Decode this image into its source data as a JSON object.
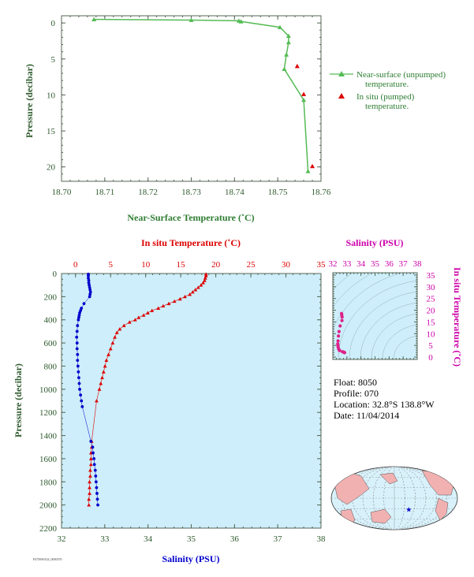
{
  "info": {
    "float": "Float: 8050",
    "profile": "Profile: 070",
    "location": "Location: 32.8°S 138.8°W",
    "date": "Date: 11/04/2014"
  },
  "stamp": "P4750S0124_0050370",
  "colors": {
    "green": "#55bb55",
    "red": "#dd0000",
    "blue": "#0000cc",
    "magenta": "#cc00aa",
    "axis_text_green": "#2e5a2e",
    "plot_bg": "#cdeefa",
    "land": "#f2b1b1"
  },
  "chart_data": [
    {
      "id": "near_surface",
      "type": "line",
      "xlabel": "Near-Surface Temperature (˚C)",
      "ylabel": "Pressure (decibar)",
      "xlim": [
        18.7,
        18.76
      ],
      "ylim": [
        22,
        -1
      ],
      "xticks": [
        18.7,
        18.71,
        18.72,
        18.73,
        18.74,
        18.75,
        18.76
      ],
      "xtick_labels": [
        "18.70",
        "18.71",
        "18.72",
        "18.73",
        "18.74",
        "18.75",
        "18.76"
      ],
      "yticks": [
        0,
        5,
        10,
        15,
        20
      ],
      "ytick_labels": [
        "0",
        "5",
        "10",
        "15",
        "20"
      ],
      "series": [
        {
          "name": "Near-surface (unpumped) temperature.",
          "marker": "triangle-line",
          "x": [
            18.7075,
            18.73,
            18.741,
            18.7415,
            18.7505,
            18.7525,
            18.7525,
            18.752,
            18.7515,
            18.756,
            18.757
          ],
          "y": [
            -0.5,
            -0.4,
            -0.3,
            -0.2,
            0.6,
            1.8,
            2.7,
            4.4,
            6.4,
            10.7,
            20.6
          ]
        },
        {
          "name": "In situ (pumped) temperature.",
          "marker": "triangle",
          "x": [
            18.7545,
            18.756,
            18.758
          ],
          "y": [
            6.0,
            9.9,
            19.9
          ]
        }
      ],
      "legend": [
        {
          "label_line1": "Near-surface (unpumped)",
          "label_line2": "temperature."
        },
        {
          "label_line1": "In situ (pumped)",
          "label_line2": "temperature."
        }
      ],
      "legend_position": "right"
    },
    {
      "id": "profile",
      "type": "scatter",
      "xlabel_top": "In situ Temperature (˚C)",
      "xlabel_bottom": "Salinity (PSU)",
      "ylabel": "Pressure (decibar)",
      "temp_lim": [
        -2,
        35
      ],
      "temp_ticks": [
        0,
        5,
        10,
        15,
        20,
        25,
        30,
        35
      ],
      "temp_tick_labels": [
        "0",
        "5",
        "10",
        "15",
        "20",
        "25",
        "30",
        "35"
      ],
      "sal_lim": [
        32,
        38
      ],
      "sal_ticks": [
        32,
        33,
        34,
        35,
        36,
        37,
        38
      ],
      "sal_tick_labels": [
        "32",
        "33",
        "34",
        "35",
        "36",
        "37",
        "38"
      ],
      "ylim": [
        2200,
        0
      ],
      "yticks": [
        0,
        200,
        400,
        600,
        800,
        1000,
        1200,
        1400,
        1600,
        1800,
        2000,
        2200
      ],
      "ytick_labels": [
        "0",
        "200",
        "400",
        "600",
        "800",
        "1000",
        "1200",
        "1400",
        "1600",
        "1800",
        "2000",
        "2200"
      ],
      "temperature": {
        "pressure": [
          5,
          20,
          40,
          60,
          80,
          100,
          120,
          140,
          160,
          180,
          200,
          220,
          240,
          260,
          280,
          300,
          320,
          340,
          360,
          380,
          400,
          420,
          450,
          480,
          510,
          550,
          600,
          650,
          700,
          750,
          800,
          850,
          900,
          950,
          1000,
          1100,
          1450,
          1500,
          1550,
          1600,
          1650,
          1700,
          1750,
          1800,
          1850,
          1900,
          1950,
          2000
        ],
        "values": [
          18.6,
          18.6,
          18.5,
          18.4,
          18.2,
          17.9,
          17.5,
          17.1,
          16.7,
          16.3,
          15.6,
          14.9,
          14.1,
          13.3,
          12.5,
          11.8,
          10.9,
          10.3,
          9.7,
          9.0,
          8.5,
          7.7,
          6.9,
          6.3,
          5.9,
          5.6,
          5.3,
          5.0,
          4.7,
          4.4,
          4.2,
          4.0,
          3.8,
          3.6,
          3.4,
          3.0,
          2.3,
          2.3,
          2.2,
          2.2,
          2.2,
          2.1,
          2.1,
          2.0,
          2.0,
          2.0,
          1.9,
          1.9
        ]
      },
      "salinity": {
        "pressure": [
          5,
          20,
          40,
          60,
          80,
          100,
          120,
          140,
          160,
          180,
          200,
          260,
          300,
          320,
          340,
          360,
          380,
          400,
          450,
          500,
          550,
          600,
          650,
          700,
          750,
          800,
          850,
          900,
          950,
          1000,
          1050,
          1100,
          1150,
          1450,
          1500,
          1550,
          1600,
          1650,
          1700,
          1750,
          1800,
          1850,
          1900,
          1950,
          2000
        ],
        "values": [
          32.62,
          32.62,
          32.62,
          32.63,
          32.63,
          32.64,
          32.65,
          32.66,
          32.67,
          32.66,
          32.65,
          32.52,
          32.46,
          32.44,
          32.42,
          32.41,
          32.4,
          32.39,
          32.37,
          32.36,
          32.35,
          32.36,
          32.36,
          32.37,
          32.37,
          32.38,
          32.39,
          32.4,
          32.41,
          32.42,
          32.44,
          32.46,
          32.48,
          32.68,
          32.72,
          32.73,
          32.75,
          32.76,
          32.78,
          32.79,
          32.8,
          32.81,
          32.82,
          32.83,
          32.84
        ]
      }
    },
    {
      "id": "ts_diagram",
      "type": "scatter",
      "xlabel": "Salinity (PSU)",
      "ylabel": "In situ Temperature (˚C)",
      "xlim": [
        32,
        38
      ],
      "xticks": [
        32,
        33,
        34,
        35,
        36,
        37,
        38
      ],
      "xtick_labels": [
        "32",
        "33",
        "34",
        "35",
        "36",
        "37",
        "38"
      ],
      "ylim": [
        -1,
        36
      ],
      "yticks": [
        0,
        5,
        10,
        15,
        20,
        25,
        30,
        35
      ],
      "ytick_labels": [
        "0",
        "5",
        "10",
        "15",
        "20",
        "25",
        "30",
        "35"
      ],
      "points": {
        "salinity": [
          32.62,
          32.64,
          32.66,
          32.65,
          32.52,
          32.44,
          32.4,
          32.37,
          32.35,
          32.36,
          32.38,
          32.42,
          32.46,
          32.48,
          32.68,
          32.75,
          32.8,
          32.84
        ],
        "temperature": [
          18.6,
          17.9,
          17.1,
          15.6,
          13.3,
          10.9,
          9.0,
          6.9,
          5.6,
          5.0,
          4.2,
          3.4,
          3.0,
          2.8,
          2.3,
          2.2,
          2.0,
          1.9
        ]
      }
    },
    {
      "id": "location_map",
      "type": "map",
      "marker_lat": -32.8,
      "marker_lon": -138.8
    }
  ]
}
